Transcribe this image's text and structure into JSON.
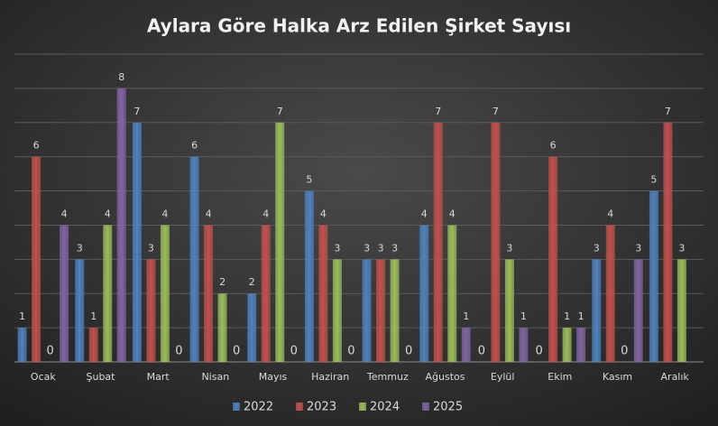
{
  "chart_data": {
    "type": "bar",
    "title": "Aylara Göre Halka Arz Edilen Şirket Sayısı",
    "categories": [
      "Ocak",
      "Şubat",
      "Mart",
      "Nisan",
      "Mayıs",
      "Haziran",
      "Temmuz",
      "Ağustos",
      "Eylül",
      "Ekim",
      "Kasım",
      "Aralık"
    ],
    "series": [
      {
        "name": "2022",
        "color": "#4f81bd",
        "values": [
          1,
          3,
          7,
          6,
          2,
          5,
          3,
          4,
          0,
          0,
          3,
          5
        ]
      },
      {
        "name": "2023",
        "color": "#c0504d",
        "values": [
          6,
          1,
          3,
          4,
          4,
          4,
          3,
          7,
          7,
          6,
          4,
          7
        ]
      },
      {
        "name": "2024",
        "color": "#9bbb59",
        "values": [
          0,
          4,
          4,
          2,
          7,
          3,
          3,
          4,
          3,
          1,
          0,
          3
        ]
      },
      {
        "name": "2025",
        "color": "#8064a2",
        "values": [
          4,
          8,
          0,
          0,
          0,
          0,
          0,
          1,
          1,
          1,
          3,
          null
        ]
      }
    ],
    "ylim": [
      0,
      9
    ],
    "yticks": [
      0,
      1,
      2,
      3,
      4,
      5,
      6,
      7,
      8,
      9
    ],
    "grid": true,
    "legend": "bottom"
  }
}
